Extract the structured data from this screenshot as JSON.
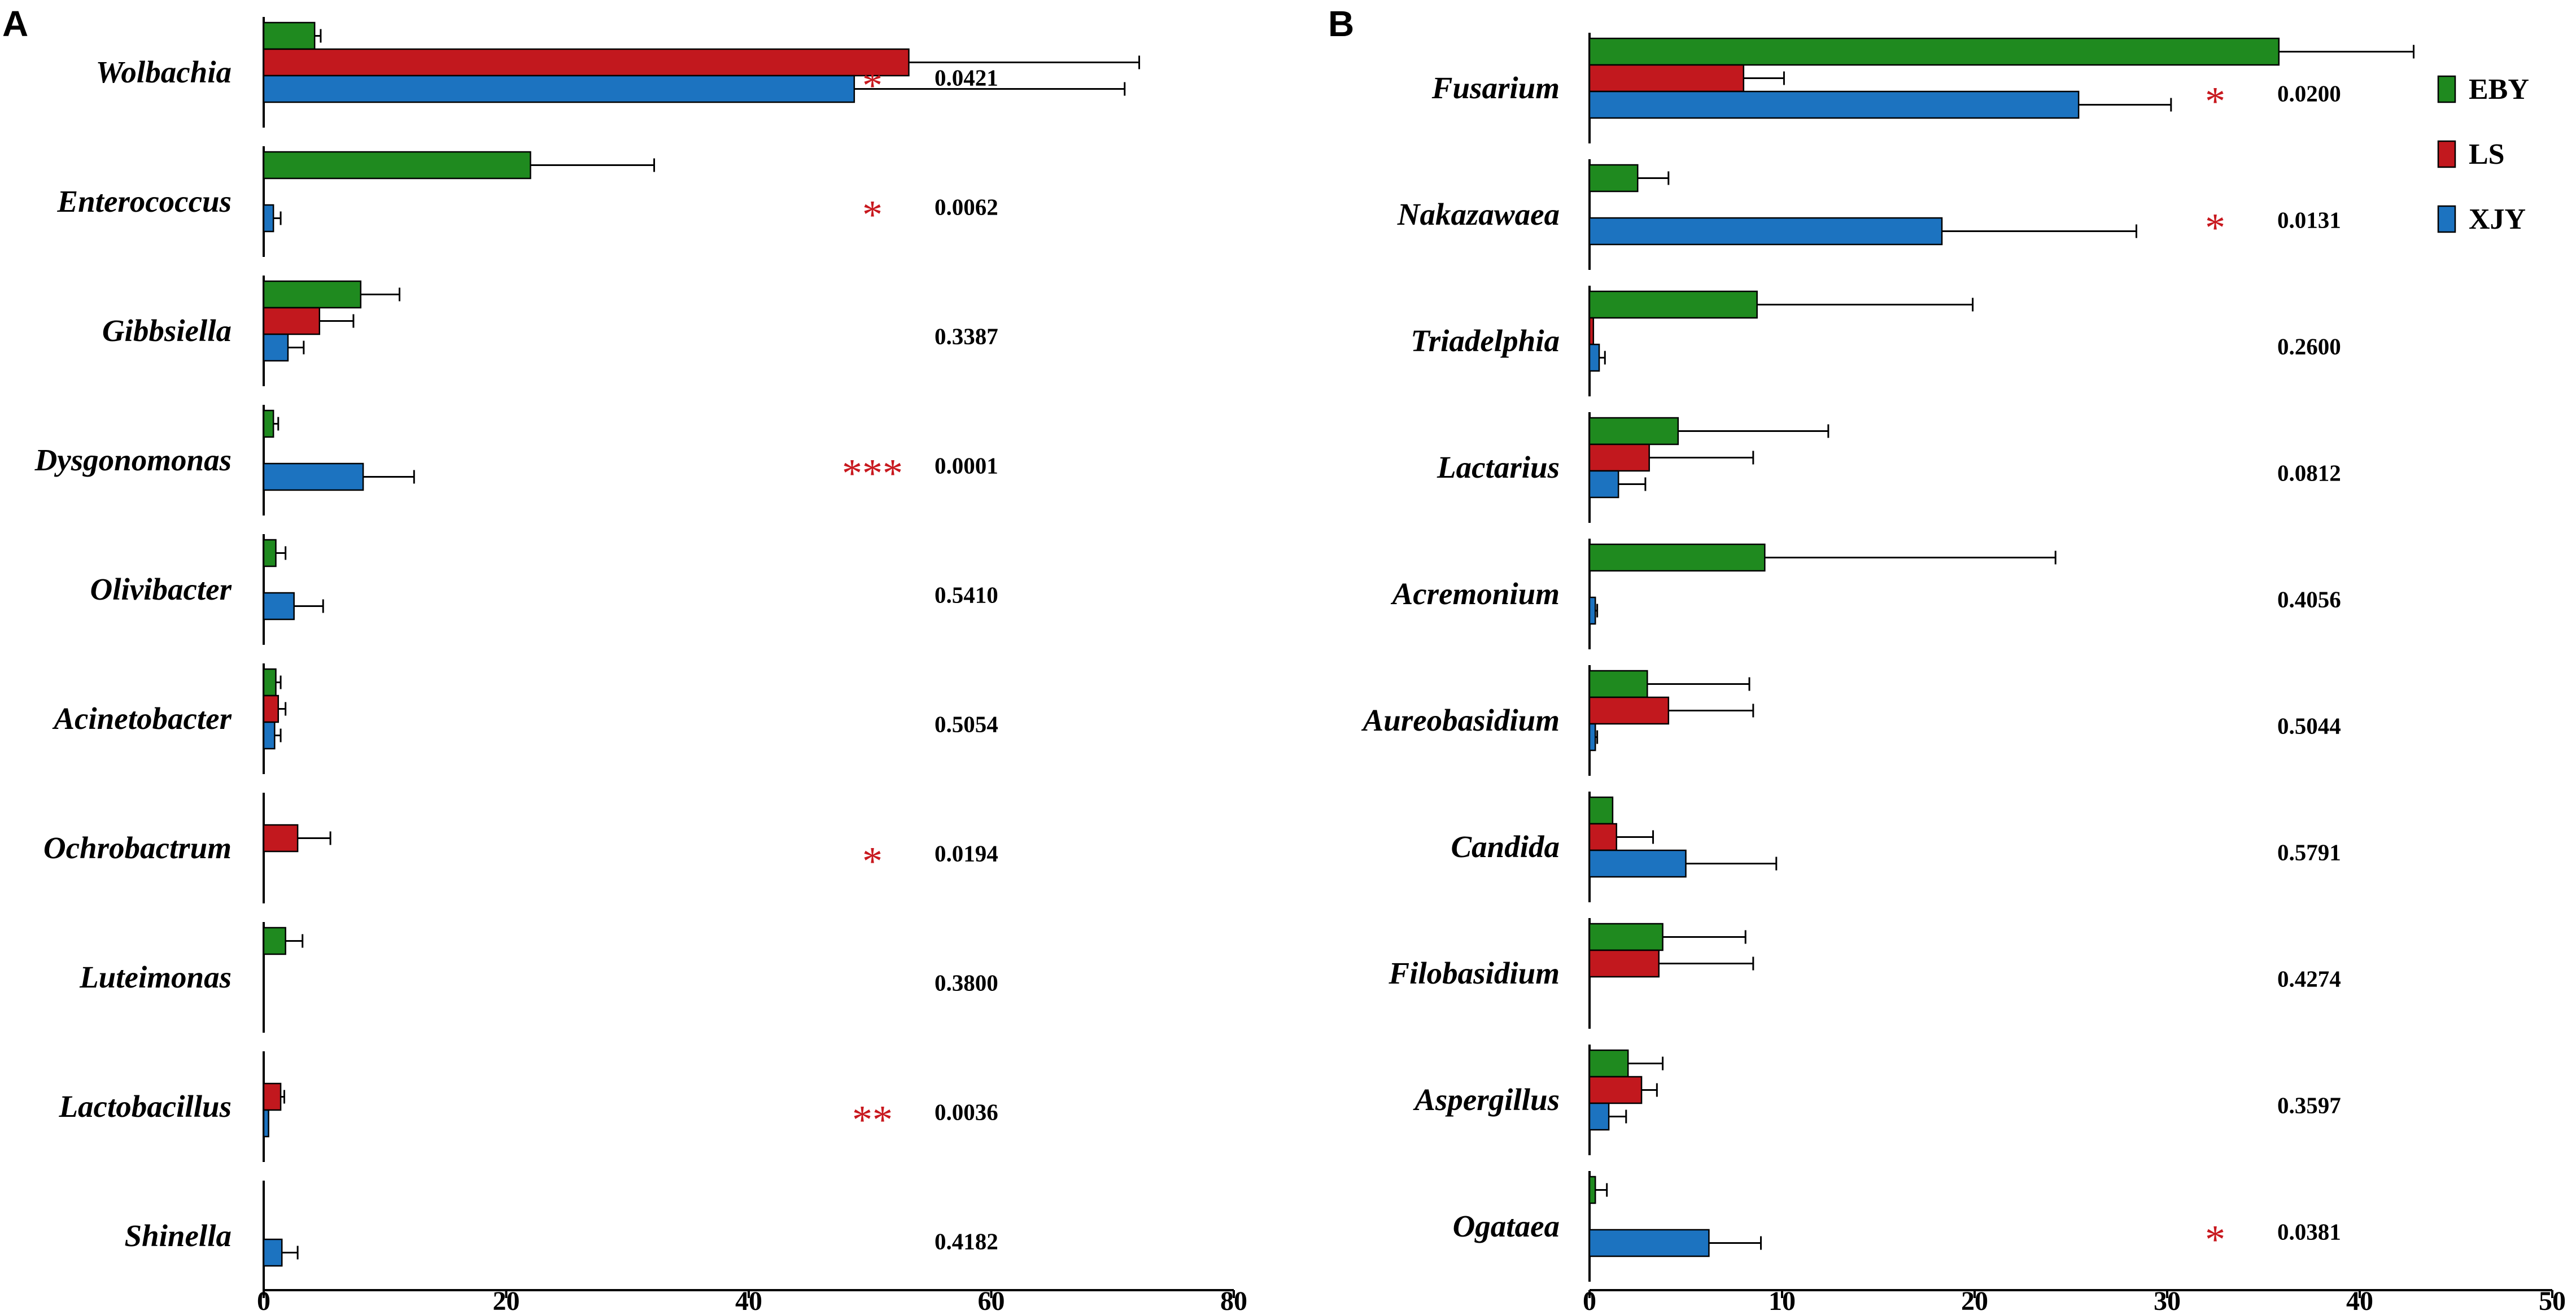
{
  "colors": {
    "EBY": "#1f8a1f",
    "LS": "#c2181e",
    "XJY": "#1c73c0",
    "significance": "#c8181e"
  },
  "legend": [
    "EBY",
    "LS",
    "XJY"
  ],
  "chart_data": [
    {
      "panel": "A",
      "type": "bar",
      "orientation": "horizontal",
      "xlim": [
        0,
        80
      ],
      "xticks": [
        0,
        20,
        40,
        60,
        80
      ],
      "series_names": [
        "EBY",
        "LS",
        "XJY"
      ],
      "categories": [
        {
          "name": "Wolbachia",
          "values": [
            4.2,
            53.2,
            48.7
          ],
          "errors": [
            0.5,
            19.0,
            22.3
          ],
          "sig": "*",
          "p": "0.0421"
        },
        {
          "name": "Enterococcus",
          "values": [
            22.0,
            0.0,
            0.8
          ],
          "errors": [
            10.2,
            0.0,
            0.6
          ],
          "sig": "*",
          "p": "0.0062"
        },
        {
          "name": "Gibbsiella",
          "values": [
            8.0,
            4.6,
            2.0
          ],
          "errors": [
            3.2,
            2.8,
            1.3
          ],
          "sig": "",
          "p": "0.3387"
        },
        {
          "name": "Dysgonomonas",
          "values": [
            0.8,
            0.0,
            8.2
          ],
          "errors": [
            0.4,
            0.0,
            4.2
          ],
          "sig": "***",
          "p": "0.0001"
        },
        {
          "name": "Olivibacter",
          "values": [
            1.0,
            0.0,
            2.5
          ],
          "errors": [
            0.8,
            0.0,
            2.4
          ],
          "sig": "",
          "p": "0.5410"
        },
        {
          "name": "Acinetobacter",
          "values": [
            1.0,
            1.2,
            0.9
          ],
          "errors": [
            0.4,
            0.6,
            0.5
          ],
          "sig": "",
          "p": "0.5054"
        },
        {
          "name": "Ochrobactrum",
          "values": [
            0.0,
            2.8,
            0.0
          ],
          "errors": [
            0.0,
            2.7,
            0.0
          ],
          "sig": "*",
          "p": "0.0194"
        },
        {
          "name": "Luteimonas",
          "values": [
            1.8,
            0.0,
            0.0
          ],
          "errors": [
            1.4,
            0.0,
            0.0
          ],
          "sig": "",
          "p": "0.3800"
        },
        {
          "name": "Lactobacillus",
          "values": [
            0.0,
            1.4,
            0.4
          ],
          "errors": [
            0.0,
            0.3,
            0.0
          ],
          "sig": "**",
          "p": "0.0036"
        },
        {
          "name": "Shinella",
          "values": [
            0.0,
            0.0,
            1.5
          ],
          "errors": [
            0.0,
            0.0,
            1.3
          ],
          "sig": "",
          "p": "0.4182"
        }
      ]
    },
    {
      "panel": "B",
      "type": "bar",
      "orientation": "horizontal",
      "xlim": [
        0,
        50
      ],
      "xticks": [
        0,
        10,
        20,
        30,
        40,
        50
      ],
      "series_names": [
        "EBY",
        "LS",
        "XJY"
      ],
      "categories": [
        {
          "name": "Fusarium",
          "values": [
            35.8,
            8.0,
            25.4
          ],
          "errors": [
            7.0,
            2.1,
            4.8
          ],
          "sig": "*",
          "p": "0.0200"
        },
        {
          "name": "Nakazawaea",
          "values": [
            2.5,
            0.0,
            18.3
          ],
          "errors": [
            1.6,
            0.0,
            10.1
          ],
          "sig": "*",
          "p": "0.0131"
        },
        {
          "name": "Triadelphia",
          "values": [
            8.7,
            0.2,
            0.5
          ],
          "errors": [
            11.2,
            0.0,
            0.3
          ],
          "sig": "",
          "p": "0.2600"
        },
        {
          "name": "Lactarius",
          "values": [
            4.6,
            3.1,
            1.5
          ],
          "errors": [
            7.8,
            5.4,
            1.4
          ],
          "sig": "",
          "p": "0.0812"
        },
        {
          "name": "Acremonium",
          "values": [
            9.1,
            0.0,
            0.3
          ],
          "errors": [
            15.1,
            0.0,
            0.1
          ],
          "sig": "",
          "p": "0.4056"
        },
        {
          "name": "Aureobasidium",
          "values": [
            3.0,
            4.1,
            0.3
          ],
          "errors": [
            5.3,
            4.4,
            0.1
          ],
          "sig": "",
          "p": "0.5044"
        },
        {
          "name": "Candida",
          "values": [
            1.2,
            1.4,
            5.0
          ],
          "errors": [
            0.0,
            1.9,
            4.7
          ],
          "sig": "",
          "p": "0.5791"
        },
        {
          "name": "Filobasidium",
          "values": [
            3.8,
            3.6,
            0.0
          ],
          "errors": [
            4.3,
            4.9,
            0.0
          ],
          "sig": "",
          "p": "0.4274"
        },
        {
          "name": "Aspergillus",
          "values": [
            2.0,
            2.7,
            1.0
          ],
          "errors": [
            1.8,
            0.8,
            0.9
          ],
          "sig": "",
          "p": "0.3597"
        },
        {
          "name": "Ogataea",
          "values": [
            0.3,
            0.0,
            6.2
          ],
          "errors": [
            0.6,
            0.0,
            2.7
          ],
          "sig": "*",
          "p": "0.0381"
        }
      ]
    }
  ]
}
